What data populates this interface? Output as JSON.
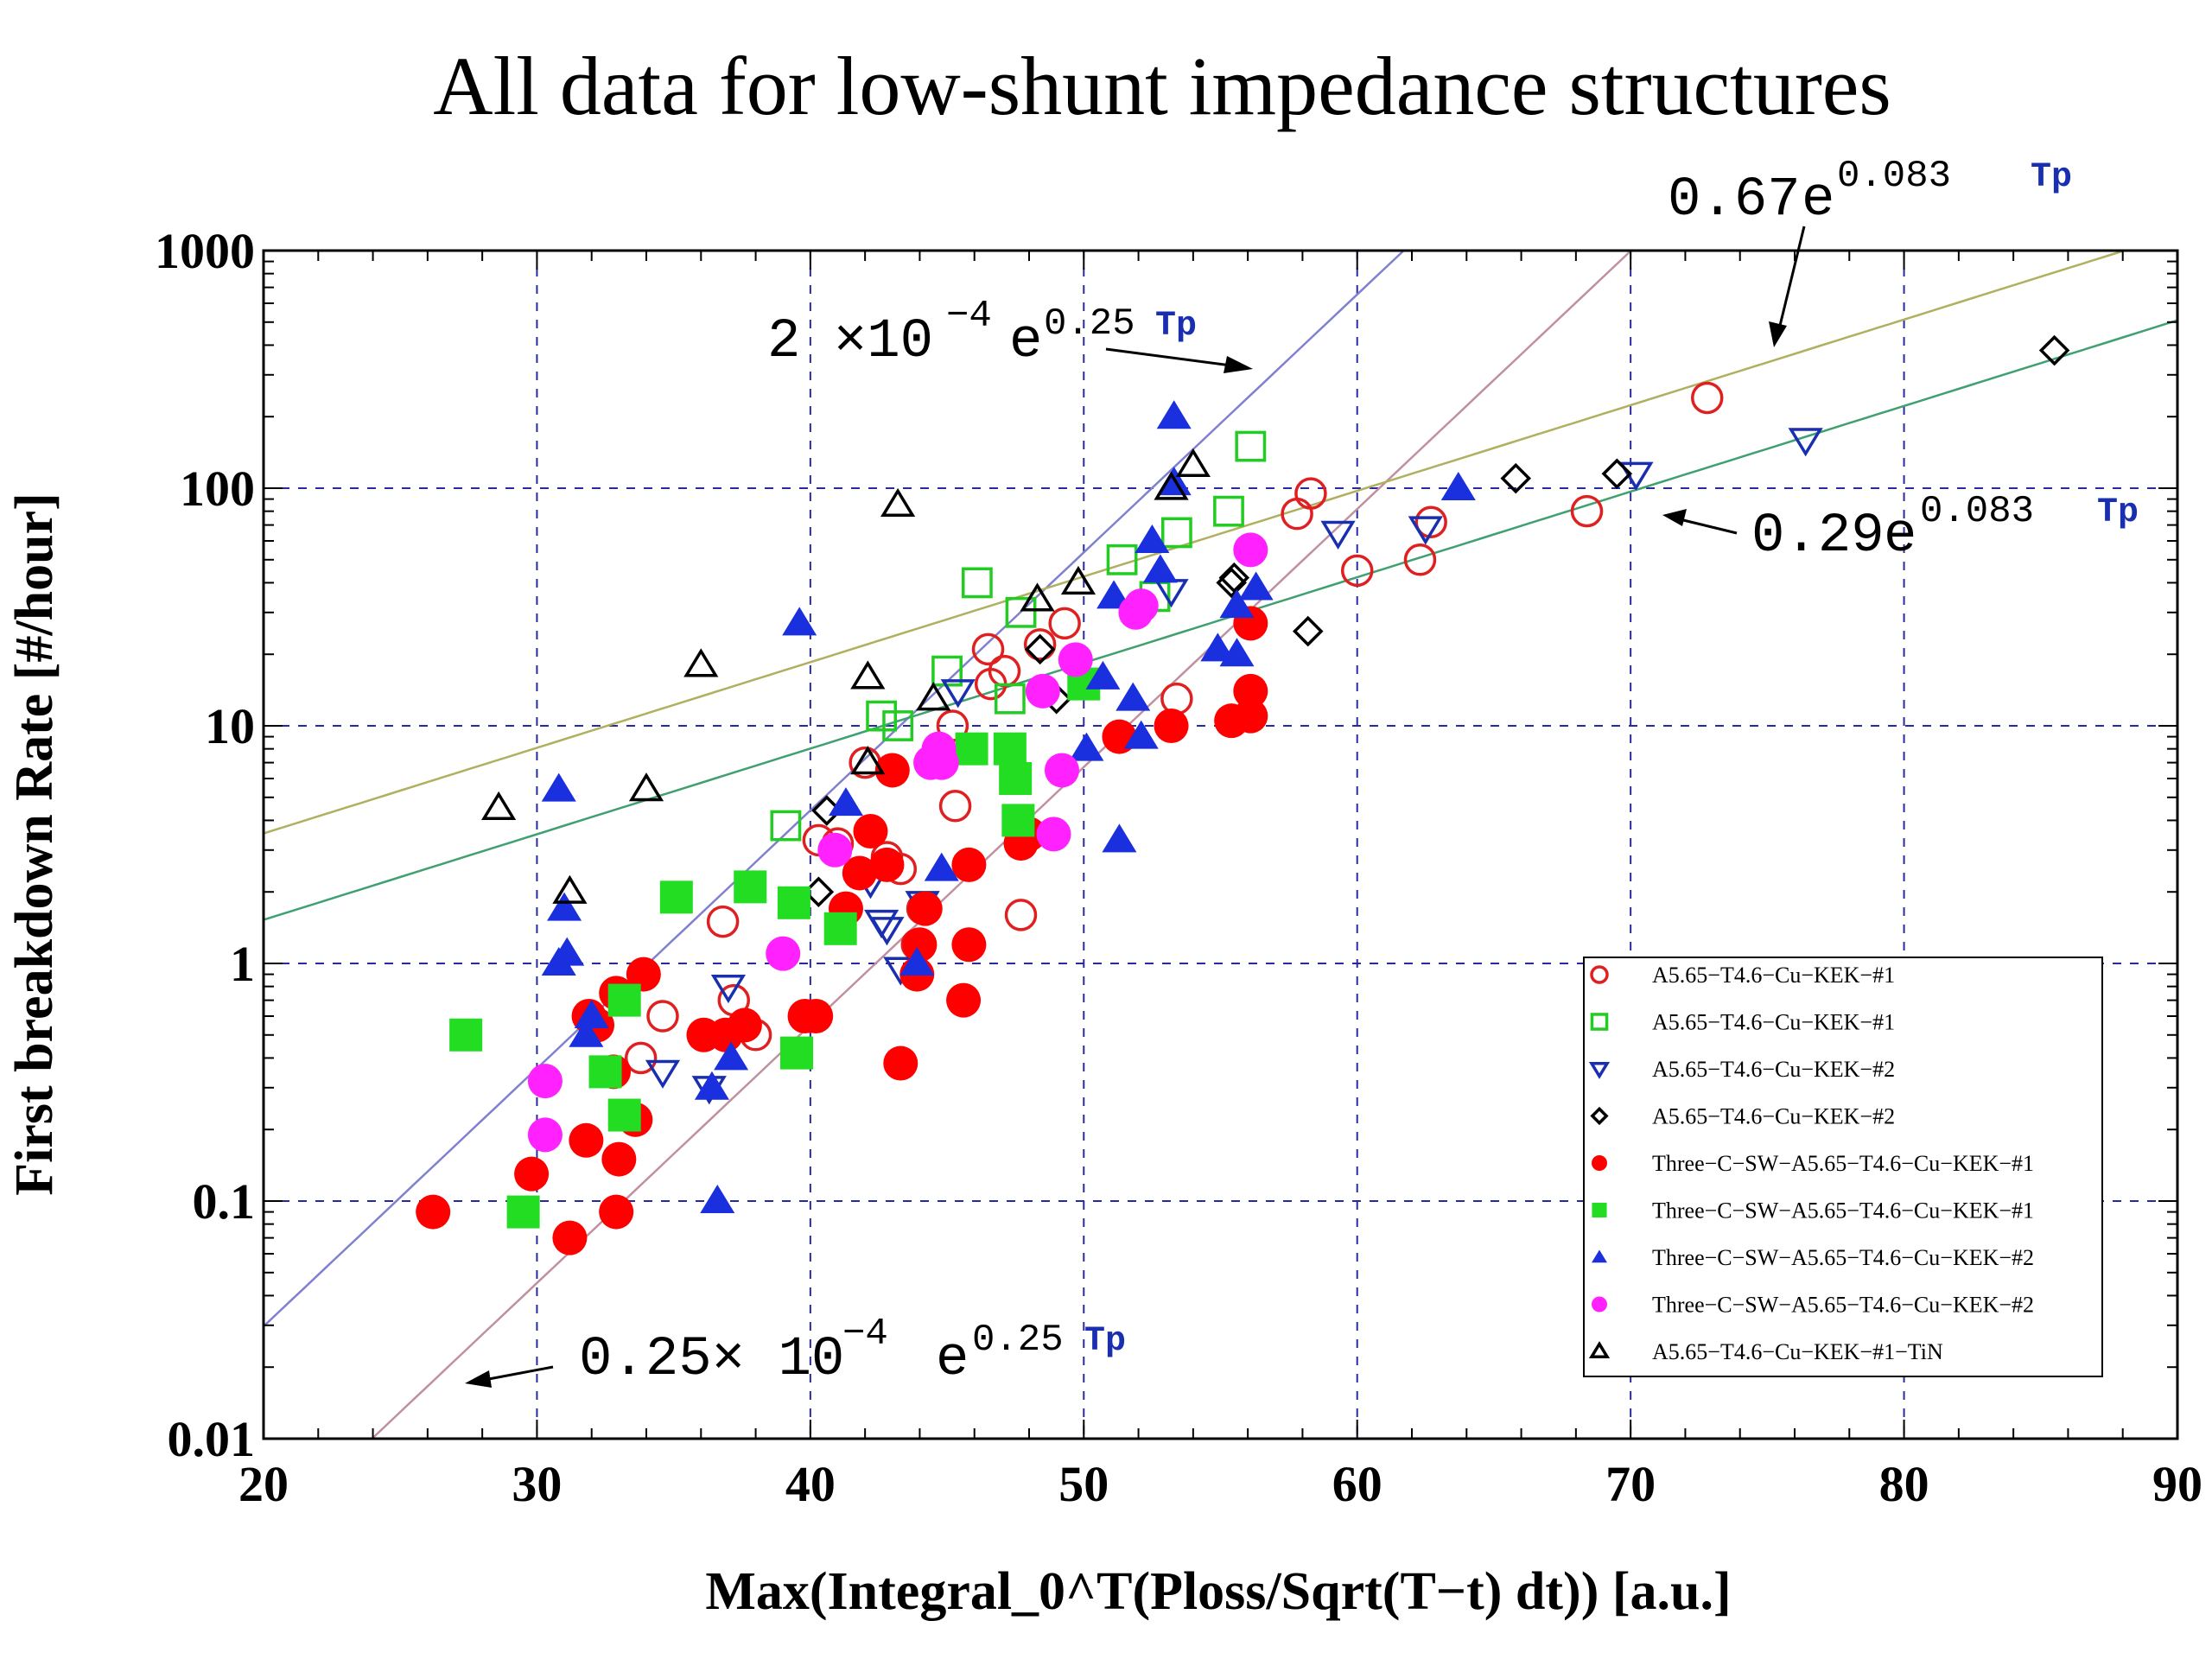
{
  "chart_data": {
    "type": "scatter",
    "title": "All data for low-shunt impedance structures",
    "xlabel": "Max(Integral_0^T(Ploss/Sqrt(T−t) dt)) [a.u.]",
    "ylabel": "First breakdown Rate [#/hour]",
    "xlim": [
      20,
      90
    ],
    "ylim": [
      0.01,
      1000
    ],
    "yscale": "log",
    "grid": true,
    "legend_position": "bottom-right",
    "xticks": [
      "20",
      "30",
      "40",
      "50",
      "60",
      "70",
      "80",
      "90"
    ],
    "yticks": [
      "0.01",
      "0.1",
      "1",
      "10",
      "100",
      "1000"
    ],
    "series": [
      {
        "name": "A5.65−T4.6−Cu−KEK−#1",
        "marker": "circle-open",
        "color": "#e02020",
        "points": [
          [
            72.8,
            240
          ],
          [
            58.3,
            95
          ],
          [
            57.8,
            78
          ],
          [
            62.7,
            72
          ],
          [
            60,
            45
          ],
          [
            62.3,
            50
          ],
          [
            68.4,
            80
          ],
          [
            53.4,
            13
          ],
          [
            46.5,
            21
          ],
          [
            47.1,
            17
          ],
          [
            46.6,
            15
          ],
          [
            49.3,
            27
          ],
          [
            48.4,
            22
          ],
          [
            42,
            7
          ],
          [
            45.2,
            10
          ],
          [
            45.3,
            4.6
          ],
          [
            47.7,
            1.6
          ],
          [
            40.3,
            3.3
          ],
          [
            41,
            3.2
          ],
          [
            42.8,
            2.8
          ],
          [
            43.3,
            2.5
          ],
          [
            44.1,
            1.7
          ],
          [
            43.9,
            1.2
          ],
          [
            34.6,
            0.6
          ],
          [
            37.2,
            0.7
          ],
          [
            38,
            0.5
          ],
          [
            33.8,
            0.4
          ],
          [
            36.8,
            1.5
          ]
        ]
      },
      {
        "name": "A5.65−T4.6−Cu−KEK−#1",
        "marker": "square-open",
        "color": "#22cc22",
        "points": [
          [
            56.1,
            150
          ],
          [
            55.3,
            80
          ],
          [
            53.4,
            65
          ],
          [
            51.4,
            50
          ],
          [
            52.6,
            35
          ],
          [
            46.1,
            40
          ],
          [
            47.7,
            30
          ],
          [
            47.3,
            13
          ],
          [
            45,
            17
          ],
          [
            43.2,
            10
          ],
          [
            42.6,
            11
          ],
          [
            39.1,
            3.8
          ]
        ]
      },
      {
        "name": "A5.65−T4.6−Cu−KEK−#2",
        "marker": "triangle-down-open",
        "color": "#1a2fb0",
        "points": [
          [
            76.4,
            160
          ],
          [
            70.2,
            115
          ],
          [
            59.3,
            65
          ],
          [
            62.5,
            68
          ],
          [
            53.2,
            37
          ],
          [
            45.4,
            14
          ],
          [
            42.2,
            2.2
          ],
          [
            42.6,
            1.5
          ],
          [
            42.8,
            1.4
          ],
          [
            44.1,
            1.8
          ],
          [
            43.3,
            0.95
          ],
          [
            37,
            0.8
          ],
          [
            34.6,
            0.35
          ],
          [
            36.3,
            0.3
          ]
        ]
      },
      {
        "name": "A5.65−T4.6−Cu−KEK−#2",
        "marker": "diamond-open",
        "color": "#000000",
        "points": [
          [
            85.5,
            380
          ],
          [
            69.5,
            115
          ],
          [
            65.8,
            110
          ],
          [
            58.2,
            25
          ],
          [
            55.5,
            42
          ],
          [
            55.4,
            40
          ],
          [
            48.4,
            21
          ],
          [
            49,
            13
          ],
          [
            40.6,
            4.4
          ],
          [
            40.3,
            2
          ]
        ]
      },
      {
        "name": "Three−C−SW−A5.65−T4.6−Cu−KEK−#1",
        "marker": "circle-filled",
        "color": "#ff0000",
        "points": [
          [
            56.1,
            27
          ],
          [
            56.1,
            14
          ],
          [
            56.1,
            11
          ],
          [
            55.4,
            10.5
          ],
          [
            53.2,
            10
          ],
          [
            51.3,
            9
          ],
          [
            48,
            3.5
          ],
          [
            47.7,
            3.2
          ],
          [
            45.8,
            2.6
          ],
          [
            45.8,
            1.2
          ],
          [
            45.6,
            0.7
          ],
          [
            42.2,
            3.6
          ],
          [
            43,
            6.5
          ],
          [
            42.8,
            2.6
          ],
          [
            41.8,
            2.4
          ],
          [
            41.3,
            1.7
          ],
          [
            44.2,
            1.7
          ],
          [
            44,
            1.2
          ],
          [
            43.9,
            0.9
          ],
          [
            43.3,
            0.38
          ],
          [
            39.8,
            0.6
          ],
          [
            40.2,
            0.6
          ],
          [
            37.6,
            0.55
          ],
          [
            36.9,
            0.5
          ],
          [
            36.1,
            0.5
          ],
          [
            33.9,
            0.9
          ],
          [
            32.9,
            0.75
          ],
          [
            31.9,
            0.6
          ],
          [
            32.2,
            0.55
          ],
          [
            31.8,
            0.18
          ],
          [
            33,
            0.15
          ],
          [
            33.6,
            0.22
          ],
          [
            32.8,
            0.35
          ],
          [
            29.8,
            0.13
          ],
          [
            31.2,
            0.07
          ],
          [
            32.9,
            0.09
          ],
          [
            26.2,
            0.09
          ]
        ]
      },
      {
        "name": "Three−C−SW−A5.65−T4.6−Cu−KEK−#1",
        "marker": "square-filled",
        "color": "#22dd22",
        "points": [
          [
            45.9,
            8
          ],
          [
            47.3,
            8
          ],
          [
            47.5,
            6
          ],
          [
            47.6,
            4
          ],
          [
            50,
            15
          ],
          [
            41.1,
            1.4
          ],
          [
            39.4,
            1.8
          ],
          [
            37.8,
            2.1
          ],
          [
            35.1,
            1.9
          ],
          [
            33.2,
            0.7
          ],
          [
            39.5,
            0.42
          ],
          [
            32.5,
            0.35
          ],
          [
            33.2,
            0.23
          ],
          [
            27.4,
            0.5
          ],
          [
            29.5,
            0.09
          ]
        ]
      },
      {
        "name": "Three−C−SW−A5.65−T4.6−Cu−KEK−#2",
        "marker": "triangle-filled",
        "color": "#1a2fdd",
        "points": [
          [
            53.3,
            200
          ],
          [
            53.3,
            105
          ],
          [
            63.7,
            100
          ],
          [
            52.5,
            60
          ],
          [
            56.3,
            38
          ],
          [
            55.6,
            32
          ],
          [
            55.6,
            20
          ],
          [
            54.9,
            21
          ],
          [
            52.8,
            45
          ],
          [
            51.1,
            35
          ],
          [
            51.8,
            13
          ],
          [
            52.1,
            9
          ],
          [
            50.1,
            8
          ],
          [
            51.3,
            3.3
          ],
          [
            50.7,
            16
          ],
          [
            39.6,
            27
          ],
          [
            30.8,
            5.4
          ],
          [
            41.3,
            4.7
          ],
          [
            44.8,
            2.5
          ],
          [
            43.9,
            1
          ],
          [
            37.1,
            0.4
          ],
          [
            36.4,
            0.3
          ],
          [
            32,
            0.6
          ],
          [
            31.8,
            0.5
          ],
          [
            36.6,
            0.1
          ],
          [
            31,
            1.7
          ],
          [
            30.8,
            1
          ],
          [
            31.1,
            1.1
          ]
        ]
      },
      {
        "name": "Three−C−SW−A5.65−T4.6−Cu−KEK−#2",
        "marker": "circle-filled",
        "color": "#ff22ff",
        "points": [
          [
            56.1,
            55
          ],
          [
            51.9,
            30
          ],
          [
            52.1,
            32
          ],
          [
            49.7,
            19
          ],
          [
            48.5,
            14
          ],
          [
            44.7,
            8
          ],
          [
            44.4,
            7
          ],
          [
            44.8,
            7
          ],
          [
            49.2,
            6.5
          ],
          [
            48.9,
            3.5
          ],
          [
            40.9,
            3
          ],
          [
            39,
            1.1
          ],
          [
            30.3,
            0.32
          ],
          [
            30.3,
            0.19
          ]
        ]
      },
      {
        "name": "A5.65−T4.6−Cu−KEK−#1−TiN",
        "marker": "triangle-open",
        "color": "#000000",
        "points": [
          [
            54,
            125
          ],
          [
            53.2,
            100
          ],
          [
            43.2,
            85
          ],
          [
            49.8,
            40
          ],
          [
            48.3,
            34
          ],
          [
            36,
            18
          ],
          [
            42.1,
            16
          ],
          [
            44.5,
            13
          ],
          [
            42.1,
            7
          ],
          [
            34,
            5.4
          ],
          [
            28.6,
            4.5
          ],
          [
            31.2,
            2
          ]
        ]
      }
    ],
    "fits": [
      {
        "label_coef": "2 ×10",
        "label_exp": "−4",
        "label_e": "e",
        "label_sup": "0.25",
        "label_tp": "Tp",
        "a": 0.0002,
        "b": 0.25,
        "color": "#8080d0"
      },
      {
        "label_coef": "0.25× 10",
        "label_exp": "−4",
        "label_e": "e",
        "label_sup": "0.25",
        "label_tp": "Tp",
        "a": 2.5e-05,
        "b": 0.25,
        "color": "#c090a0"
      },
      {
        "label_coef": "0.67 ",
        "label_e": "e",
        "label_sup": "0.083",
        "label_tp": "Tp",
        "a": 0.67,
        "b": 0.083,
        "color": "#b0b060"
      },
      {
        "label_coef": "0.29 ",
        "label_e": "e",
        "label_sup": "0.083",
        "label_tp": "Tp",
        "a": 0.29,
        "b": 0.083,
        "color": "#40a070"
      }
    ]
  }
}
